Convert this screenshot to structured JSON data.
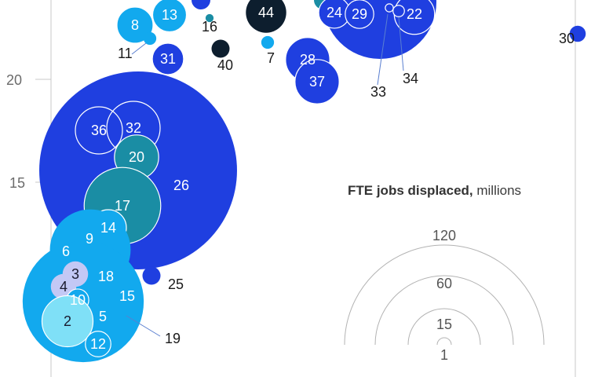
{
  "chart_data": {
    "type": "bubble",
    "y_ticks": [
      "20",
      "15"
    ],
    "bubbles": [
      {
        "label": "26",
        "value": 120,
        "color": "#1f3fe0"
      },
      {
        "label": "36",
        "value": 8,
        "color": "#1f3fe0"
      },
      {
        "label": "32",
        "value": 10,
        "color": "#1f3fe0"
      },
      {
        "label": "20",
        "value": 6,
        "color": "#1a8da4"
      },
      {
        "label": "17",
        "value": 18,
        "color": "#1a8da4"
      },
      {
        "label": "9",
        "value": 9,
        "color": "#12a9ee"
      },
      {
        "label": "14",
        "value": 4,
        "color": "#12a9ee"
      },
      {
        "label": "6",
        "value": 20,
        "color": "#12a9ee"
      },
      {
        "label": "18",
        "value": 3,
        "color": "#1a8da4"
      },
      {
        "label": "25",
        "value": 1,
        "color": "#1f3fe0"
      },
      {
        "label": "15",
        "value": 2,
        "color": "#1a8da4"
      },
      {
        "label": "19",
        "value": 0.2,
        "color": "#1a8da4"
      },
      {
        "label": "5",
        "value": 45,
        "color": "#12a9ee"
      },
      {
        "label": "3",
        "value": 2,
        "color": "#c3c8f5"
      },
      {
        "label": "4",
        "value": 2,
        "color": "#c3c8f5"
      },
      {
        "label": "10",
        "value": 1.5,
        "color": "#12a9ee"
      },
      {
        "label": "2",
        "value": 8,
        "color": "#7fe0f7"
      },
      {
        "label": "12",
        "value": 2,
        "color": "#12a9ee"
      },
      {
        "label": "8",
        "value": 4,
        "color": "#12a9ee"
      },
      {
        "label": "13",
        "value": 3.5,
        "color": "#12a9ee"
      },
      {
        "label": "11",
        "value": 0.5,
        "color": "#12a9ee"
      },
      {
        "label": "31",
        "value": 3,
        "color": "#1f3fe0"
      },
      {
        "label": "16",
        "value": 0.2,
        "color": "#1a8da4"
      },
      {
        "label": "40",
        "value": 1,
        "color": "#0d1e2e"
      },
      {
        "label": "44",
        "value": 5,
        "color": "#0d1e2e"
      },
      {
        "label": "7",
        "value": 0.5,
        "color": "#12a9ee"
      },
      {
        "label": "28",
        "value": 6,
        "color": "#1f3fe0"
      },
      {
        "label": "37",
        "value": 6,
        "color": "#1f3fe0"
      },
      {
        "label": "24",
        "value": 3,
        "color": "#1f3fe0"
      },
      {
        "label": "29",
        "value": 2.5,
        "color": "#1f3fe0"
      },
      {
        "label": "22",
        "value": 5,
        "color": "#1f3fe0"
      },
      {
        "label": "33",
        "value": 0.2,
        "color": "#1f3fe0"
      },
      {
        "label": "34",
        "value": 0.4,
        "color": "#1f3fe0"
      },
      {
        "label": "30",
        "value": 0.8,
        "color": "#1f3fe0"
      }
    ],
    "legend": {
      "title_bold": "FTE jobs displaced,",
      "title_rest": " millions",
      "sizes": [
        120,
        60,
        15,
        1
      ],
      "size_labels": [
        "120",
        "60",
        "15",
        "1"
      ]
    }
  }
}
